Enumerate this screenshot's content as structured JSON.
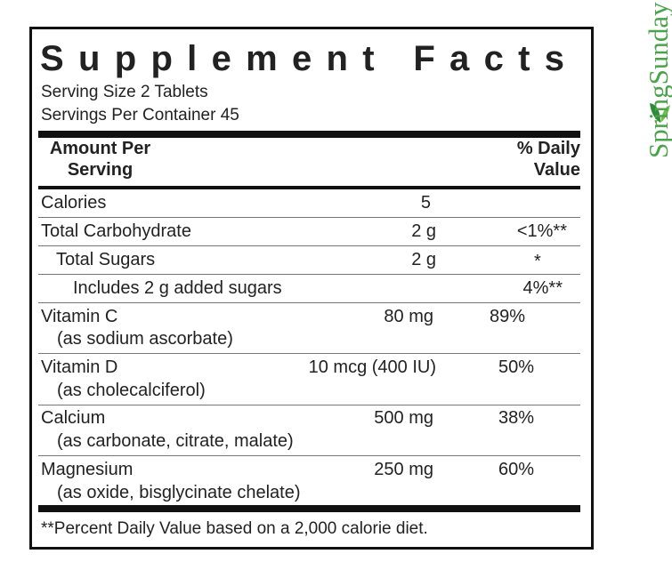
{
  "title": "Supplement Facts",
  "serving_size": "Serving Size 2 Tablets",
  "servings_per_container": "Servings Per Container 45",
  "table": {
    "header": {
      "amount": "Amount Per Serving",
      "daily_value": "% Daily Value"
    },
    "rows": [
      {
        "name": "Calories",
        "amount": "5"
      },
      {
        "name": "Total Carbohydrate",
        "amount": "2 g",
        "daily_value": "<1%**"
      },
      {
        "name": "Total Sugars",
        "amount": "2 g",
        "daily_value": "*"
      },
      {
        "name": "Includes 2 g added sugars",
        "daily_value": "4%**"
      },
      {
        "name": "Vitamin C",
        "detail": "(as sodium ascorbate)",
        "amount": "80 mg",
        "daily_value": "89%"
      },
      {
        "name": "Vitamin D",
        "detail": "(as cholecalciferol)",
        "amount": "10 mcg (400 IU)",
        "daily_value": "50%"
      },
      {
        "name": "Calcium",
        "detail": "(as carbonate, citrate, malate)",
        "amount": "500 mg",
        "daily_value": "38%"
      },
      {
        "name": "Magnesium",
        "detail": "(as oxide, bisglycinate chelate)",
        "amount": "250 mg",
        "daily_value": "60%"
      }
    ]
  },
  "footnote": "**Percent Daily Value based on a 2,000 calorie diet.",
  "brand": "SpringSunday"
}
